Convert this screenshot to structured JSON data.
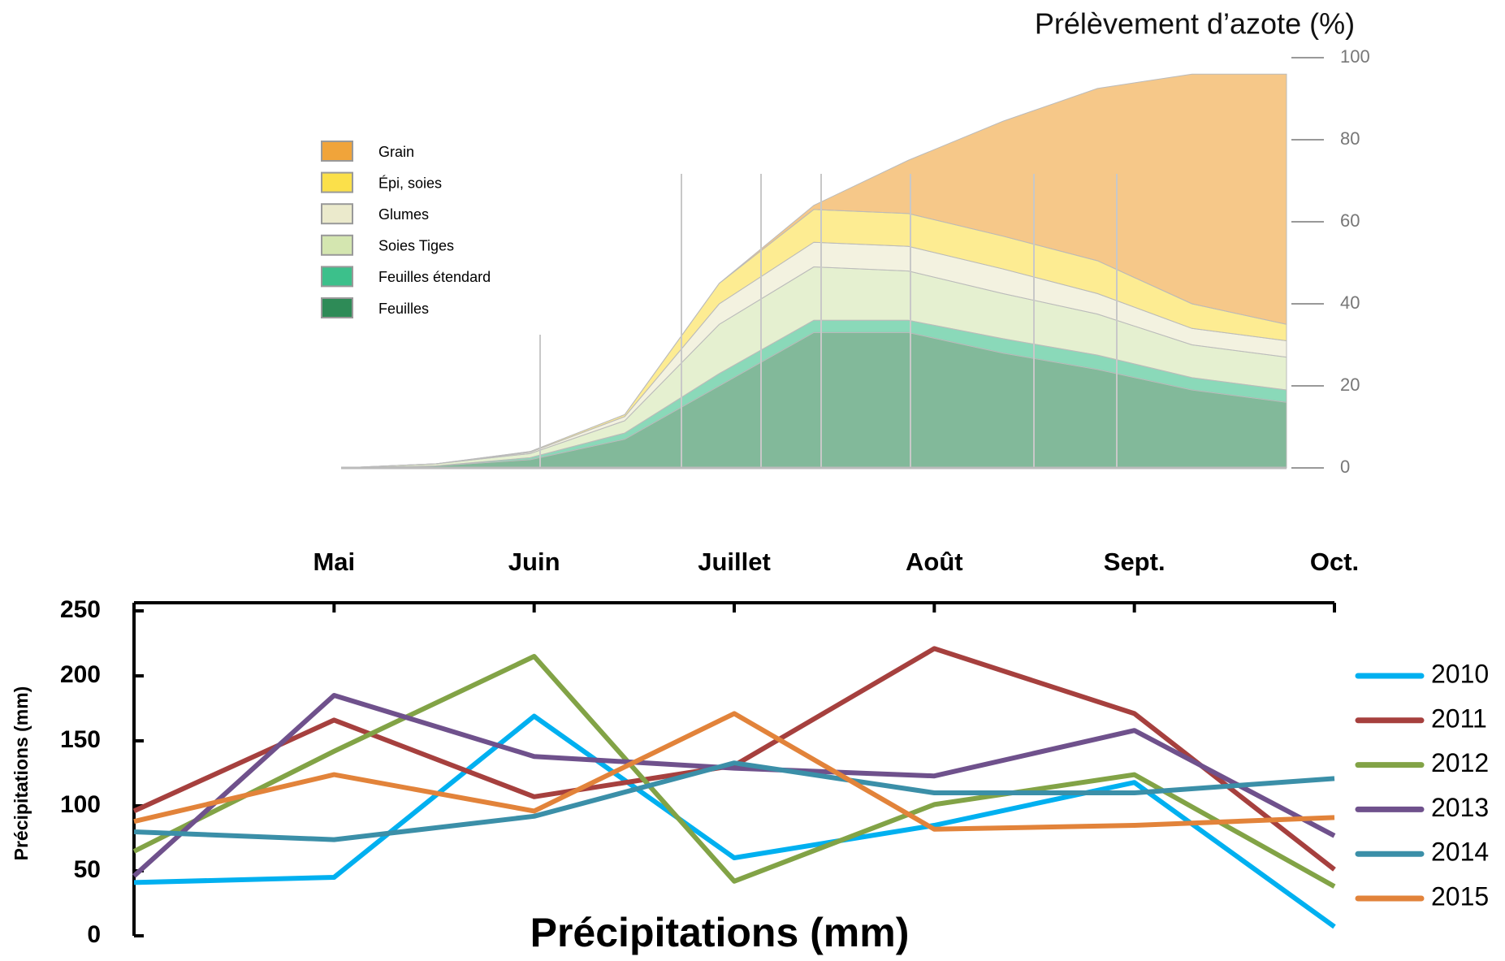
{
  "chart_data": [
    {
      "type": "stacked-area",
      "title": "Prélèvement  d’azote (%)",
      "categories": [
        null,
        null,
        null,
        null,
        null,
        null,
        null,
        null,
        null,
        null,
        null
      ],
      "ylim": [
        0,
        100
      ],
      "yticks": [
        0,
        20,
        40,
        60,
        80,
        100
      ],
      "series": [
        {
          "name": "Feuilles",
          "color": "#2e8b57",
          "values": [
            0,
            0.5,
            2,
            7,
            20,
            33,
            33,
            28,
            24,
            19,
            16
          ]
        },
        {
          "name": "Feuilles étendard",
          "color": "#3cc08b",
          "values": [
            0,
            0,
            0.5,
            1.5,
            3,
            3,
            3,
            3.5,
            3.5,
            3,
            3
          ]
        },
        {
          "name": "Soies Tiges",
          "color": "#d4e6b0",
          "values": [
            0,
            0.5,
            1,
            3,
            12,
            13,
            12,
            11,
            10,
            8,
            8
          ]
        },
        {
          "name": "Glumes",
          "color": "#ebeacc",
          "values": [
            0,
            0,
            0.3,
            1,
            5,
            6,
            6,
            6,
            5,
            4,
            4
          ]
        },
        {
          "name": "Épi, soies",
          "color": "#fbe04a",
          "values": [
            0,
            0,
            0.2,
            0.5,
            5,
            8,
            8,
            8,
            8,
            6,
            4
          ]
        },
        {
          "name": "Grain",
          "color": "#f0a43a",
          "values": [
            0,
            0,
            0,
            0,
            0,
            1,
            13,
            28,
            42,
            56,
            61
          ]
        }
      ]
    },
    {
      "type": "line",
      "x_label": "Précipitations (mm)",
      "y_label": "Précipitations (mm)",
      "categories": [
        null,
        "Mai",
        "Juin",
        "Juillet",
        "Août",
        "Sept.",
        "Oct."
      ],
      "ylim": [
        0,
        250
      ],
      "yticks": [
        0,
        50,
        100,
        150,
        200,
        250
      ],
      "series": [
        {
          "name": "2010",
          "color": "#00b0f0",
          "values": [
            41,
            45,
            169,
            60,
            85,
            118,
            7
          ]
        },
        {
          "name": "2011",
          "color": "#a6403e",
          "values": [
            96,
            166,
            107,
            131,
            221,
            171,
            51
          ]
        },
        {
          "name": "2012",
          "color": "#82a346",
          "values": [
            65,
            142,
            215,
            42,
            101,
            124,
            38
          ]
        },
        {
          "name": "2013",
          "color": "#6f518c",
          "values": [
            46,
            185,
            138,
            129,
            123,
            158,
            77
          ]
        },
        {
          "name": "2014",
          "color": "#3b8fa8",
          "values": [
            80,
            74,
            92,
            133,
            110,
            110,
            121
          ]
        },
        {
          "name": "2015",
          "color": "#e2833a",
          "values": [
            88,
            124,
            96,
            171,
            82,
            85,
            91
          ]
        }
      ]
    }
  ]
}
